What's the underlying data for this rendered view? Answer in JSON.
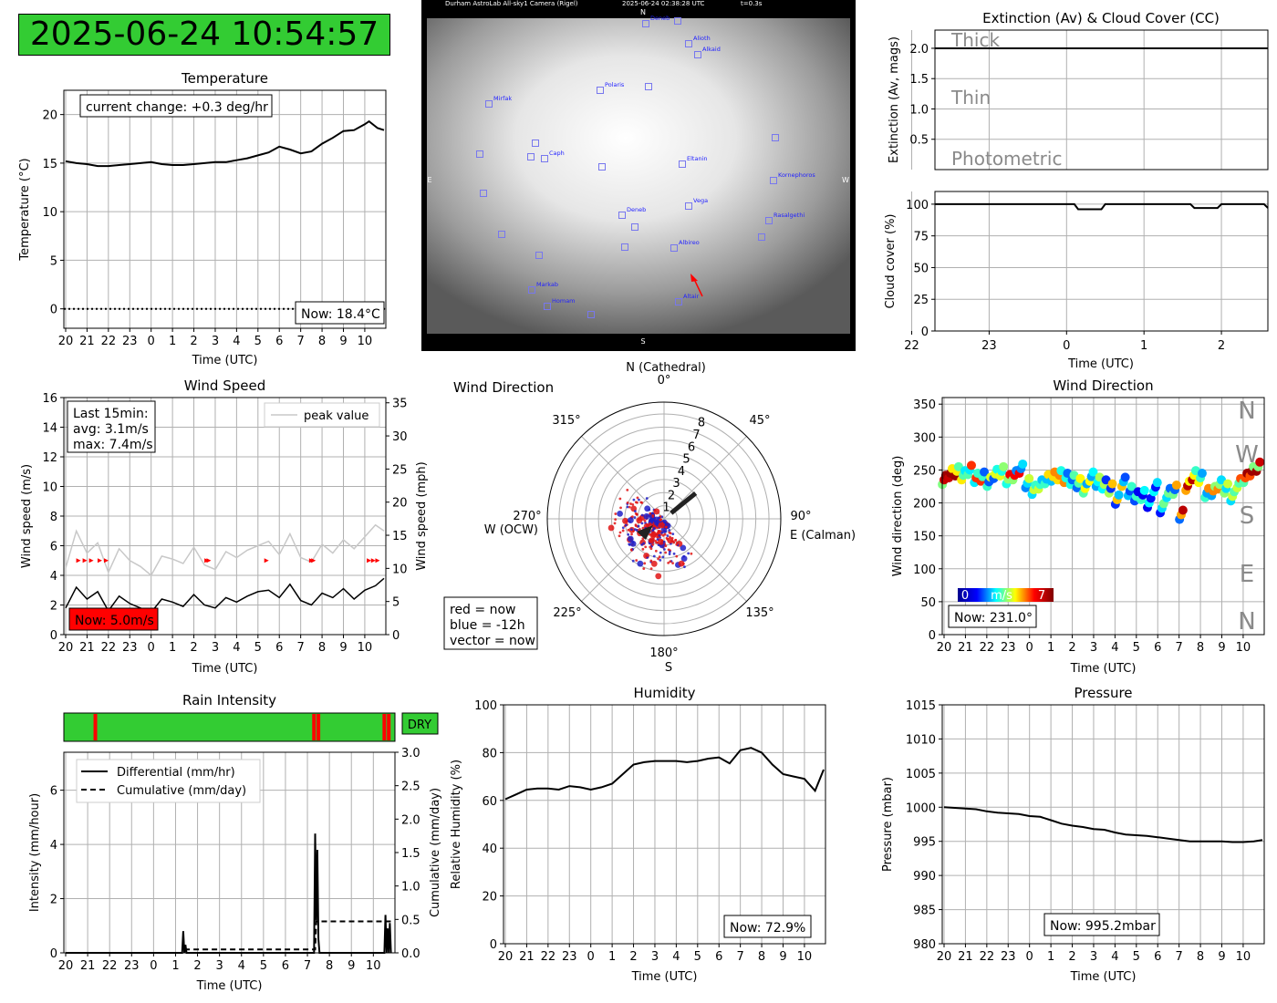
{
  "timestamp": "2025-06-24 10:54:57",
  "colors": {
    "status_green": "#33cc33",
    "alert_red": "#ff0000",
    "grid": "#b0b0b0",
    "peak_grey": "#c8c8c8",
    "sky_frame": "#000000",
    "star_marker": "#7777ee"
  },
  "chart_data": [
    {
      "id": "temperature",
      "type": "line",
      "title": "Temperature",
      "xlabel": "Time (UTC)",
      "ylabel": "Temperature (°C)",
      "xticks": [
        "20",
        "21",
        "22",
        "23",
        "0",
        "1",
        "2",
        "3",
        "4",
        "5",
        "6",
        "7",
        "8",
        "9",
        "10"
      ],
      "yticks": [
        0,
        5,
        10,
        15,
        20
      ],
      "ylim": [
        -2,
        22.5
      ],
      "grid": true,
      "x_hours_since_20utc": [
        0,
        0.5,
        1,
        1.5,
        2,
        2.5,
        3,
        3.5,
        4,
        4.5,
        5,
        5.5,
        6,
        6.5,
        7,
        7.5,
        8,
        8.5,
        9,
        9.5,
        10,
        10.5,
        11,
        11.5,
        12,
        12.5,
        13,
        13.5,
        14,
        14.2,
        14.6,
        14.9
      ],
      "values": [
        15.2,
        15.0,
        14.9,
        14.7,
        14.7,
        14.8,
        14.9,
        15.0,
        15.1,
        14.9,
        14.8,
        14.8,
        14.9,
        15.0,
        15.1,
        15.1,
        15.3,
        15.5,
        15.8,
        16.1,
        16.7,
        16.4,
        16.0,
        16.2,
        17.0,
        17.6,
        18.3,
        18.4,
        19.0,
        19.3,
        18.6,
        18.4
      ],
      "dotted_zero_line": true,
      "annotation": "current change: +0.3 deg/hr",
      "now_label": "Now: 18.4°C"
    },
    {
      "id": "sky_camera",
      "type": "image",
      "caption": "Durham AstroLab All-sky1 Camera (Rigel)",
      "capture_time": "2025-06-24 02:38:28 UTC",
      "exposure": "t=0.3s",
      "compass": {
        "n": "N",
        "e": "E",
        "w": "W",
        "s": "S"
      },
      "stars": [
        "Deneb",
        "Alioth",
        "Alkaid",
        "Polaris",
        "Mirfak",
        "Caph",
        "Eltanin",
        "Kornephoros",
        "Vega",
        "Deneb",
        "Rasalgethi",
        "Albireo",
        "Markab",
        "Homam",
        "Altair"
      ]
    },
    {
      "id": "extinction",
      "type": "line",
      "title": "Extinction (Av) & Cloud Cover (CC)",
      "ylabel": "Extinction (Av, mags)",
      "yticks": [
        0.5,
        1.0,
        1.5,
        2.0
      ],
      "ylim": [
        0,
        2.3
      ],
      "grid": true,
      "bands": [
        "Thick",
        "Thin",
        "Photometric"
      ],
      "x": [
        22.3,
        26.6
      ],
      "values": [
        2.0,
        2.0
      ]
    },
    {
      "id": "cloud_cover",
      "type": "line",
      "xlabel": "Time (UTC)",
      "ylabel": "Cloud cover (%)",
      "xticks": [
        "22",
        "23",
        "0",
        "1",
        "2"
      ],
      "yticks": [
        0,
        25,
        50,
        75,
        100
      ],
      "ylim": [
        0,
        110
      ],
      "grid": true,
      "x": [
        22.3,
        24.1,
        24.15,
        24.45,
        24.5,
        25.6,
        25.65,
        25.95,
        26.0,
        26.55,
        26.6
      ],
      "values": [
        100,
        100,
        96,
        96,
        100,
        100,
        97,
        97,
        100,
        100,
        97
      ]
    },
    {
      "id": "wind_speed",
      "type": "line",
      "title": "Wind Speed",
      "xlabel": "Time (UTC)",
      "ylabel": "Wind speed (m/s)",
      "y2label": "Wind speed (mph)",
      "xticks": [
        "20",
        "21",
        "22",
        "23",
        "0",
        "1",
        "2",
        "3",
        "4",
        "5",
        "6",
        "7",
        "8",
        "9",
        "10"
      ],
      "yticks": [
        0,
        2,
        4,
        6,
        8,
        10,
        12,
        14,
        16
      ],
      "ylim": [
        0,
        16
      ],
      "y2ticks": [
        0,
        5,
        10,
        15,
        20,
        25,
        30,
        35
      ],
      "grid": true,
      "legend": [
        "peak value"
      ],
      "annotation": [
        "Last 15min:",
        "avg: 3.1m/s",
        "max: 7.4m/s"
      ],
      "now_label": "Now: 5.0m/s",
      "x_hours_since_20utc": [
        0,
        0.5,
        1,
        1.5,
        2,
        2.5,
        3,
        3.5,
        4,
        4.5,
        5,
        5.5,
        6,
        6.5,
        7,
        7.5,
        8,
        8.5,
        9,
        9.5,
        10,
        10.5,
        11,
        11.5,
        12,
        12.5,
        13,
        13.5,
        14,
        14.5,
        14.9
      ],
      "values": [
        1.8,
        3.2,
        2.4,
        2.9,
        1.6,
        2.6,
        2.1,
        1.8,
        1.5,
        2.4,
        2.2,
        1.9,
        2.7,
        2.0,
        1.8,
        2.5,
        2.2,
        2.6,
        2.9,
        3.0,
        2.5,
        3.4,
        2.3,
        2.0,
        2.8,
        2.5,
        3.1,
        2.4,
        3.0,
        3.3,
        3.8
      ],
      "peak_values": [
        4.5,
        7.0,
        5.5,
        6.2,
        4.2,
        5.8,
        5.0,
        4.6,
        4.0,
        5.3,
        5.1,
        4.8,
        5.9,
        4.7,
        4.4,
        5.6,
        5.2,
        5.7,
        6.0,
        6.3,
        5.4,
        6.8,
        5.2,
        4.9,
        6.1,
        5.5,
        6.4,
        5.8,
        6.6,
        7.4,
        7.0
      ],
      "alert_markers_hours_since_20utc": [
        0.6,
        0.9,
        1.2,
        1.6,
        1.9,
        6.6,
        6.7,
        9.4,
        11.5,
        11.6,
        14.2,
        14.4,
        14.6
      ]
    },
    {
      "id": "wind_direction_polar",
      "type": "scatter",
      "title": "Wind Direction",
      "angle_labels": [
        "0°",
        "45°",
        "90°",
        "135°",
        "180°",
        "225°",
        "270°",
        "315°"
      ],
      "radial_ticks": [
        1,
        2,
        3,
        4,
        5,
        6,
        7,
        8
      ],
      "compass_labels": {
        "north": "N (Cathedral)",
        "east": "E (Calman)",
        "south": "S",
        "west": "W (OCW)"
      },
      "legend": [
        "red = now",
        "blue = -12h",
        "vector = now"
      ],
      "vector": {
        "direction_deg": 231.0,
        "speed": 3.1
      }
    },
    {
      "id": "wind_direction_time",
      "type": "scatter",
      "title": "Wind Direction",
      "xlabel": "Time (UTC)",
      "ylabel": "Wind direction (deg)",
      "xticks": [
        "20",
        "21",
        "22",
        "23",
        "0",
        "1",
        "2",
        "3",
        "4",
        "5",
        "6",
        "7",
        "8",
        "9",
        "10"
      ],
      "yticks": [
        0,
        50,
        100,
        150,
        200,
        250,
        300,
        350
      ],
      "ylim": [
        0,
        360
      ],
      "grid": true,
      "side_labels": [
        "N",
        "W",
        "S",
        "E",
        "N"
      ],
      "colorbar": {
        "min": "0",
        "label": "m/s",
        "max": "7"
      },
      "now_label": "Now: 231.0°",
      "x_hours_since_20utc": [
        0,
        0.3,
        0.6,
        0.9,
        1.2,
        1.5,
        1.8,
        2.1,
        2.4,
        2.7,
        3.0,
        3.3,
        3.6,
        3.9,
        4.2,
        4.5,
        4.8,
        5.1,
        5.4,
        5.7,
        6.0,
        6.3,
        6.6,
        6.9,
        7.2,
        7.5,
        7.8,
        8.1,
        8.4,
        8.7,
        9.0,
        9.3,
        9.6,
        9.9,
        10.2,
        10.5,
        10.8,
        11.1,
        11.4,
        11.7,
        12.0,
        12.3,
        12.6,
        12.9,
        13.2,
        13.5,
        13.8,
        14.1,
        14.4,
        14.7
      ],
      "values": [
        235,
        245,
        248,
        242,
        250,
        238,
        240,
        232,
        244,
        248,
        236,
        242,
        252,
        230,
        220,
        228,
        236,
        240,
        242,
        238,
        235,
        230,
        222,
        240,
        232,
        228,
        222,
        205,
        232,
        218,
        210,
        212,
        200,
        224,
        192,
        215,
        220,
        182,
        226,
        242,
        238,
        215,
        218,
        228,
        222,
        210,
        230,
        238,
        248,
        255
      ],
      "speeds": [
        3.5,
        6.5,
        6.8,
        4.5,
        3.2,
        2.5,
        5.8,
        3.0,
        1.5,
        4.2,
        2.8,
        3.6,
        6.2,
        1.8,
        2.4,
        4.0,
        3.0,
        2.2,
        4.6,
        5.2,
        2.8,
        1.6,
        3.2,
        4.4,
        2.0,
        2.6,
        3.8,
        1.2,
        4.8,
        2.2,
        1.4,
        3.0,
        0.8,
        2.6,
        1.0,
        2.4,
        3.4,
        1.6,
        5.0,
        6.6,
        4.4,
        3.0,
        2.0,
        5.2,
        3.6,
        2.4,
        4.0,
        3.2,
        5.6,
        6.8
      ]
    },
    {
      "id": "rain_status",
      "type": "bar",
      "status_label": "DRY",
      "wet_markers_hours_since_20utc": [
        1.35,
        11.3,
        11.5,
        14.5,
        14.7
      ]
    },
    {
      "id": "rain_intensity",
      "type": "line",
      "title": "Rain Intensity",
      "xlabel": "Time (UTC)",
      "ylabel": "Intensity (mm/hour)",
      "y2label": "Cumulative (mm/day)",
      "xticks": [
        "20",
        "21",
        "22",
        "23",
        "0",
        "1",
        "2",
        "3",
        "4",
        "5",
        "6",
        "7",
        "8",
        "9",
        "10"
      ],
      "yticks": [
        0,
        2,
        4,
        6
      ],
      "ylim": [
        0,
        7.4
      ],
      "y2ticks": [
        "0.0",
        "0.5",
        "1.0",
        "1.5",
        "2.0",
        "2.5",
        "3.0"
      ],
      "y2lim": [
        0,
        3.0
      ],
      "grid": true,
      "legend": [
        "Differential (mm/hr)",
        "Cumulative (mm/day)"
      ],
      "differential": {
        "x": [
          0,
          5.3,
          5.35,
          5.4,
          5.45,
          5.5,
          11.3,
          11.35,
          11.4,
          11.45,
          11.5,
          11.55,
          11.6,
          14.5,
          14.55,
          14.6,
          14.65,
          14.7,
          14.75,
          14.8
        ],
        "values": [
          0,
          0,
          0.8,
          0,
          0.3,
          0,
          0,
          4.4,
          1.2,
          3.8,
          0.5,
          0,
          0,
          0,
          1.4,
          0,
          0.9,
          0,
          1.1,
          0
        ]
      },
      "cumulative": {
        "x": [
          5.4,
          11.35,
          11.4,
          14.5,
          14.55,
          14.9
        ],
        "values": [
          0.05,
          0.05,
          0.47,
          0.47,
          0.47,
          0.47
        ]
      }
    },
    {
      "id": "humidity",
      "type": "line",
      "title": "Humidity",
      "xlabel": "Time (UTC)",
      "ylabel": "Relative Humidity (%)",
      "xticks": [
        "20",
        "21",
        "22",
        "23",
        "0",
        "1",
        "2",
        "3",
        "4",
        "5",
        "6",
        "7",
        "8",
        "9",
        "10"
      ],
      "yticks": [
        0,
        20,
        40,
        60,
        80,
        100
      ],
      "ylim": [
        0,
        100
      ],
      "grid": true,
      "now_label": "Now: 72.9%",
      "x_hours_since_20utc": [
        0,
        0.5,
        1,
        1.5,
        2,
        2.5,
        3,
        3.5,
        4,
        4.5,
        5,
        5.5,
        6,
        6.5,
        7,
        7.5,
        8,
        8.5,
        9,
        9.5,
        10,
        10.5,
        11,
        11.5,
        12,
        12.5,
        13,
        13.5,
        14,
        14.5,
        14.9
      ],
      "values": [
        60.5,
        62.5,
        64.5,
        65.0,
        65.0,
        64.5,
        66.0,
        65.5,
        64.5,
        65.5,
        67.0,
        71.0,
        75.0,
        76.0,
        76.5,
        76.5,
        76.5,
        76.0,
        76.5,
        77.5,
        78.0,
        75.5,
        81.0,
        82.0,
        80.0,
        75.0,
        71.0,
        70.0,
        69.0,
        64.0,
        72.9
      ]
    },
    {
      "id": "pressure",
      "type": "line",
      "title": "Pressure",
      "xlabel": "Time (UTC)",
      "ylabel": "Pressure (mbar)",
      "xticks": [
        "20",
        "21",
        "22",
        "23",
        "0",
        "1",
        "2",
        "3",
        "4",
        "5",
        "6",
        "7",
        "8",
        "9",
        "10"
      ],
      "yticks": [
        980,
        985,
        990,
        995,
        1000,
        1005,
        1010,
        1015
      ],
      "ylim": [
        980,
        1015
      ],
      "grid": true,
      "now_label": "Now: 995.2mbar",
      "x_hours_since_20utc": [
        0,
        0.5,
        1,
        1.5,
        2,
        2.5,
        3,
        3.5,
        4,
        4.5,
        5,
        5.5,
        6,
        6.5,
        7,
        7.5,
        8,
        8.5,
        9,
        9.5,
        10,
        10.5,
        11,
        11.5,
        12,
        12.5,
        13,
        13.5,
        14,
        14.5,
        14.9
      ],
      "values": [
        1000.0,
        999.9,
        999.8,
        999.7,
        999.4,
        999.2,
        999.1,
        999.0,
        998.7,
        998.6,
        998.1,
        997.6,
        997.3,
        997.1,
        996.8,
        996.7,
        996.3,
        996.0,
        995.9,
        995.8,
        995.6,
        995.4,
        995.2,
        995.0,
        995.0,
        995.0,
        995.0,
        994.9,
        994.9,
        995.0,
        995.2
      ]
    }
  ]
}
